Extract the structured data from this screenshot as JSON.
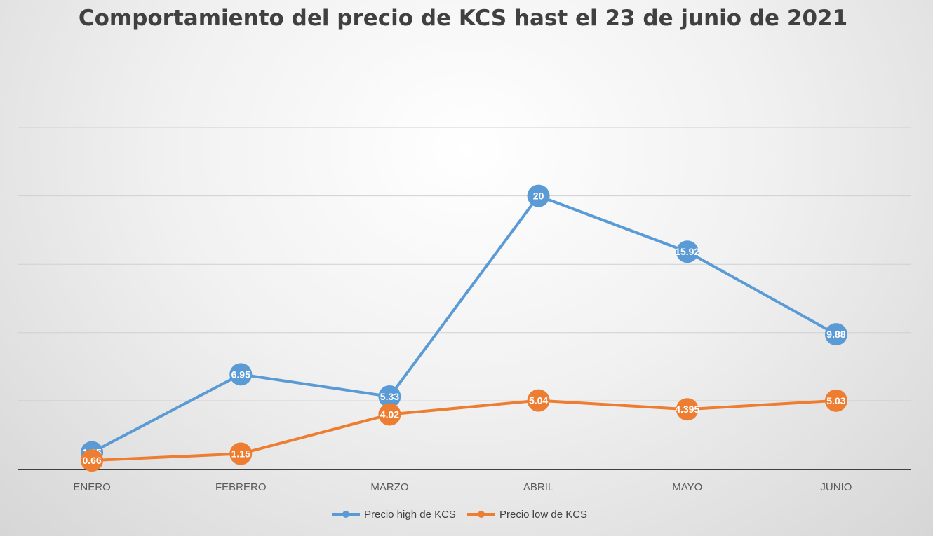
{
  "chart_data": {
    "type": "line",
    "title": "Comportamiento del precio de KCS hast el 23 de junio de 2021",
    "categories": [
      "ENERO",
      "FEBRERO",
      "MARZO",
      "ABRIL",
      "MAYO",
      "JUNIO"
    ],
    "series": [
      {
        "name": "Precio high de KCS",
        "color": "#5b9bd5",
        "values": [
          1.25,
          6.95,
          5.33,
          20,
          15.92,
          9.88
        ],
        "labels": [
          "1.25",
          "6.95",
          "5.33",
          "20",
          "15.92",
          "9.88"
        ]
      },
      {
        "name": "Precio low de KCS",
        "color": "#ed7d31",
        "values": [
          0.66,
          1.15,
          4.02,
          5.04,
          4.395,
          5.03
        ],
        "labels": [
          "0.66",
          "1.15",
          "4.02",
          "5.04",
          "4.395",
          "5.03"
        ]
      }
    ],
    "ylim": [
      0,
      25
    ],
    "grid": true,
    "legend_position": "bottom",
    "xlabel": "",
    "ylabel": ""
  }
}
